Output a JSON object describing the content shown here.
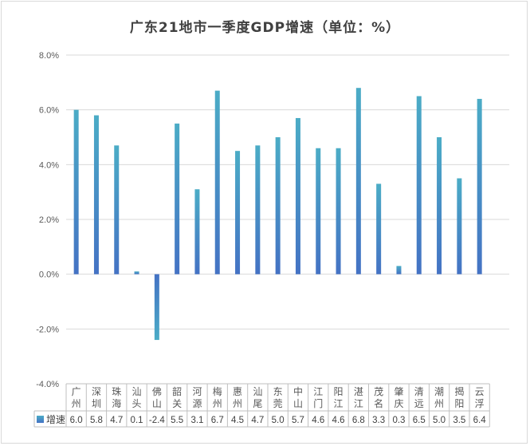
{
  "chart_data": {
    "type": "bar",
    "title": "广东21地市一季度GDP增速（单位：%）",
    "categories": [
      "广州",
      "深圳",
      "珠海",
      "汕头",
      "佛山",
      "韶关",
      "河源",
      "梅州",
      "惠州",
      "汕尾",
      "东莞",
      "中山",
      "江门",
      "阳江",
      "湛江",
      "茂名",
      "肇庆",
      "清远",
      "潮州",
      "揭阳",
      "云浮"
    ],
    "series": [
      {
        "name": "增速",
        "values": [
          6.0,
          5.8,
          4.7,
          0.1,
          -2.4,
          5.5,
          3.1,
          6.7,
          4.5,
          4.7,
          5.0,
          5.7,
          4.6,
          4.6,
          6.8,
          3.3,
          0.3,
          6.5,
          5.0,
          3.5,
          6.4
        ],
        "labels": [
          "6.0",
          "5.8",
          "4.7",
          "0.1",
          "-2.4",
          "5.5",
          "3.1",
          "6.7",
          "4.5",
          "4.7",
          "5.0",
          "5.7",
          "4.6",
          "4.6",
          "6.8",
          "3.3",
          "0.3",
          "6.5",
          "5.0",
          "3.5",
          "6.4"
        ]
      }
    ],
    "ylim": [
      -4.0,
      8.0
    ],
    "yticks": [
      "8.0%",
      "6.0%",
      "4.0%",
      "2.0%",
      "0.0%",
      "-2.0%",
      "-4.0%"
    ],
    "grid": true,
    "legend": "data-table",
    "data_table": true,
    "colors": {
      "bar_top": "#4bacc6",
      "bar_bottom": "#4472c4",
      "grid": "#d9d9d9",
      "text": "#595959"
    }
  }
}
